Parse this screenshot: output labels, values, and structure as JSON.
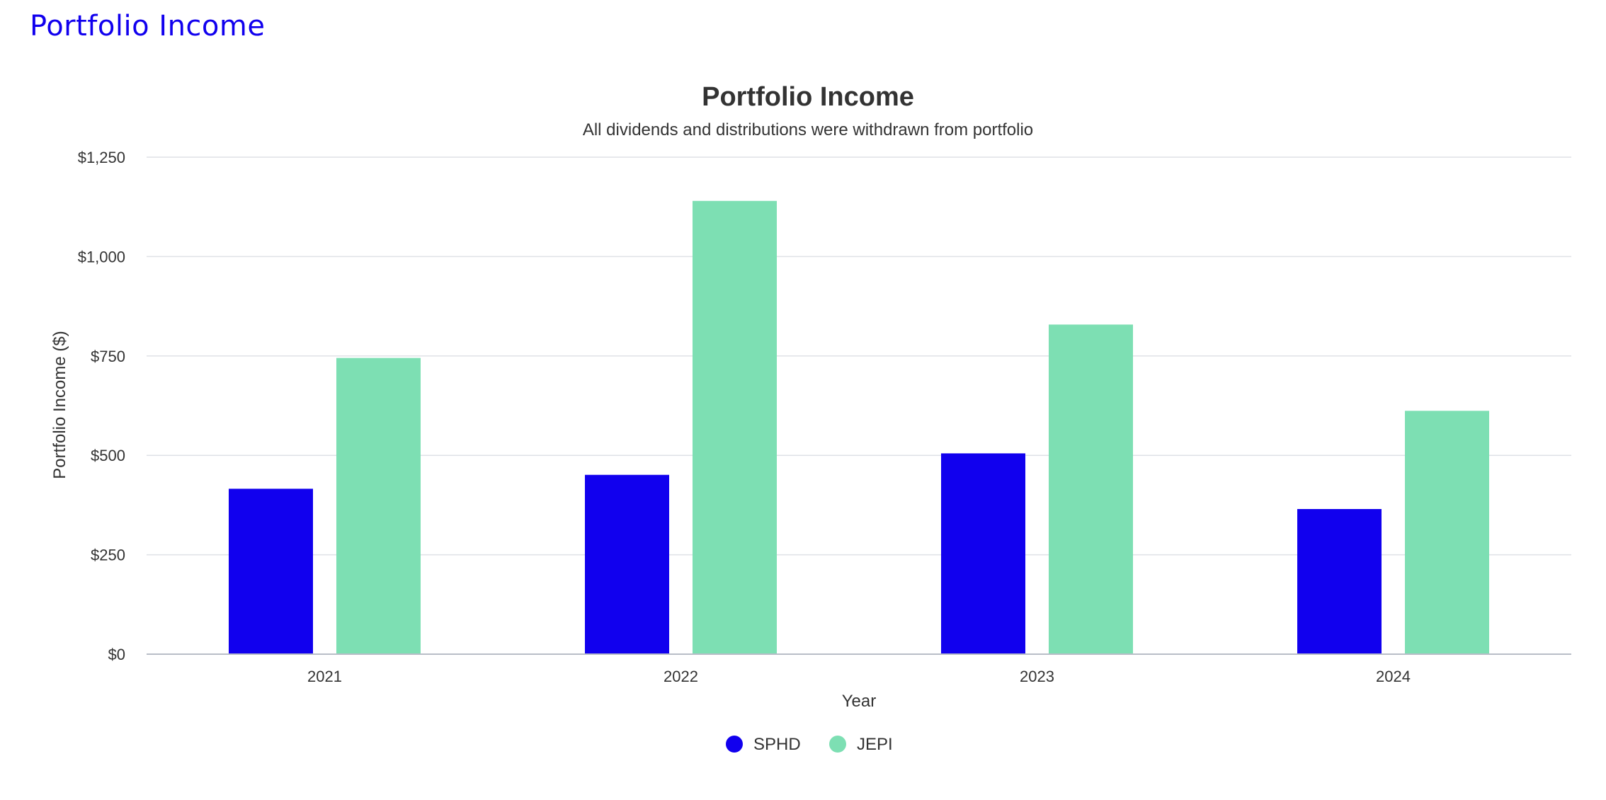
{
  "page": {
    "heading": "Portfolio Income"
  },
  "chart_data": {
    "type": "bar",
    "title": "Portfolio Income",
    "subtitle": "All dividends and distributions were withdrawn from portfolio",
    "xlabel": "Year",
    "ylabel": "Portfolio Income ($)",
    "categories": [
      "2021",
      "2022",
      "2023",
      "2024"
    ],
    "series": [
      {
        "name": "SPHD",
        "color": "#1100ee",
        "values": [
          416,
          451,
          505,
          365
        ]
      },
      {
        "name": "JEPI",
        "color": "#7ddfb3",
        "values": [
          745,
          1140,
          829,
          612
        ]
      }
    ],
    "ylim": [
      0,
      1250
    ],
    "yticks": [
      0,
      250,
      500,
      750,
      1000,
      1250
    ],
    "ytick_labels": [
      "$0",
      "$250",
      "$500",
      "$750",
      "$1,000",
      "$1,250"
    ],
    "grid": true,
    "legend_position": "bottom-center"
  }
}
